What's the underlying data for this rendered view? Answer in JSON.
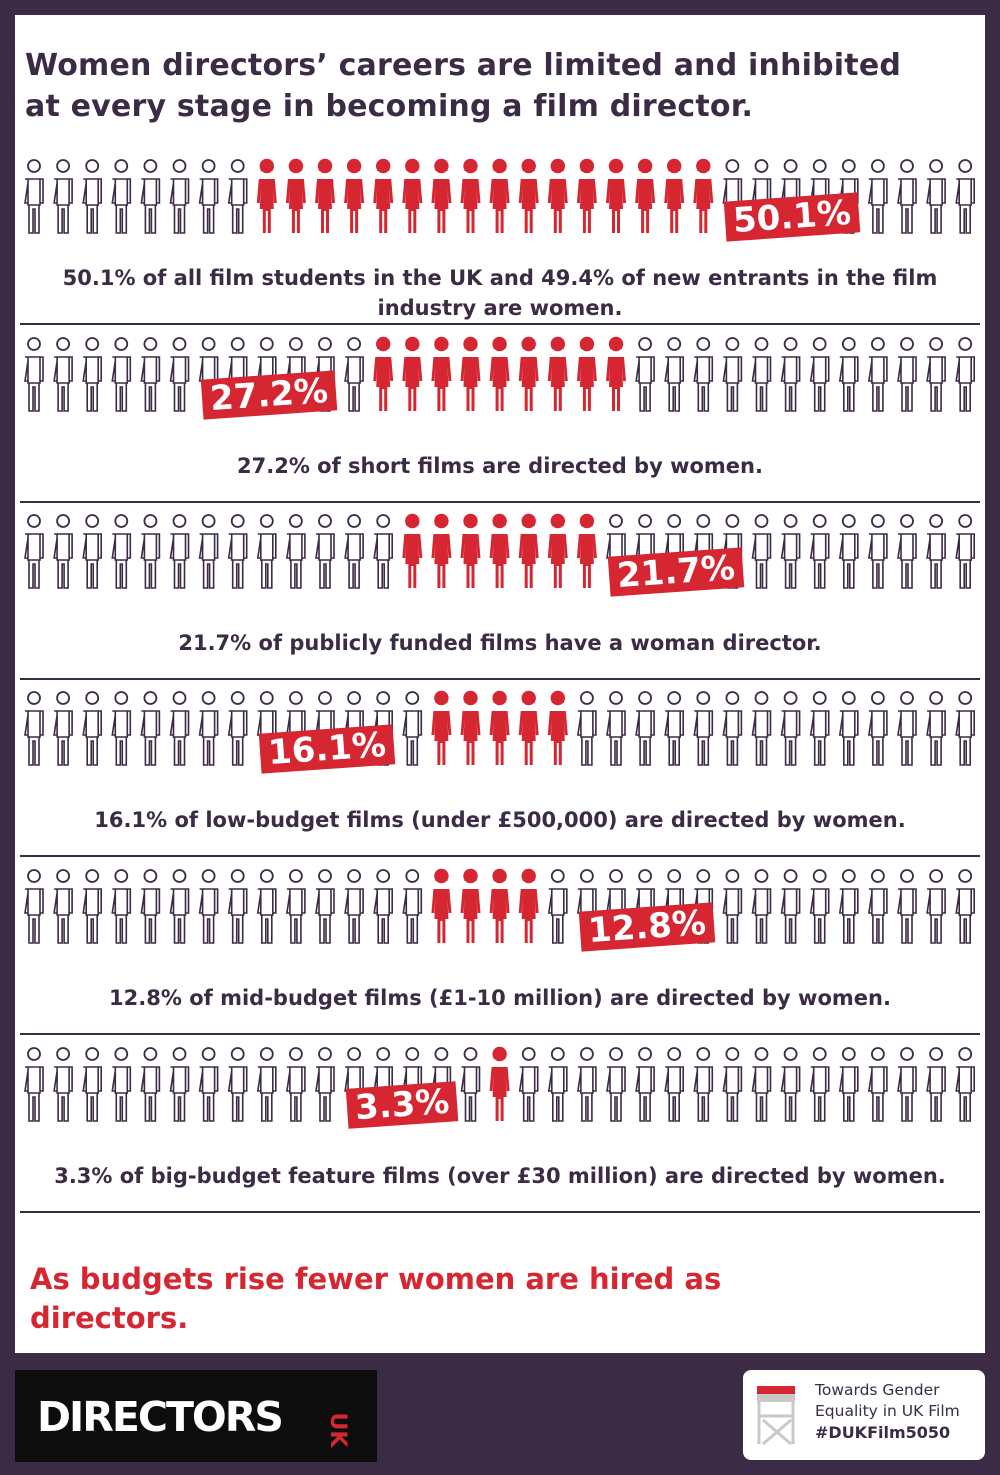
{
  "title": "Women directors’ careers are limited and inhibited at every stage in becoming a film director.",
  "colors": {
    "accent": "#d62631",
    "text": "#3b2b45",
    "background": "#3b2b45",
    "panel": "#ffffff"
  },
  "rows": [
    {
      "percent": 50.1,
      "label": "50.1%",
      "caption": "50.1% of all film students in the UK and 49.4% of new entrants in the film industry are women.",
      "total_figures": 33,
      "red_start": 8,
      "red_count": 16,
      "badge_after_index": 24
    },
    {
      "percent": 27.2,
      "label": "27.2%",
      "caption": "27.2% of short films are directed by women.",
      "total_figures": 33,
      "red_start": 12,
      "red_count": 9,
      "badge_after_index": 6
    },
    {
      "percent": 21.7,
      "label": "21.7%",
      "caption": "21.7% of publicly funded films have a woman director.",
      "total_figures": 33,
      "red_start": 13,
      "red_count": 7,
      "badge_after_index": 20
    },
    {
      "percent": 16.1,
      "label": "16.1%",
      "caption": "16.1% of low-budget films (under £500,000) are directed by women.",
      "total_figures": 33,
      "red_start": 14,
      "red_count": 5,
      "badge_after_index": 8
    },
    {
      "percent": 12.8,
      "label": "12.8%",
      "caption": "12.8% of mid-budget films (£1-10 million) are directed by women.",
      "total_figures": 33,
      "red_start": 14,
      "red_count": 4,
      "badge_after_index": 19
    },
    {
      "percent": 3.3,
      "label": "3.3%",
      "caption": "3.3% of big-budget feature films (over £30 million) are directed by women.",
      "total_figures": 33,
      "red_start": 16,
      "red_count": 1,
      "badge_after_index": 11
    }
  ],
  "conclusion": "As budgets rise fewer women are hired as directors.",
  "footer": {
    "logo_text": "DIRECTORS",
    "logo_suffix": "UK",
    "campaign_line1": "Towards Gender",
    "campaign_line2": "Equality in UK Film",
    "campaign_hashtag": "#DUKFilm5050",
    "chair_icon": "director-chair-icon"
  }
}
